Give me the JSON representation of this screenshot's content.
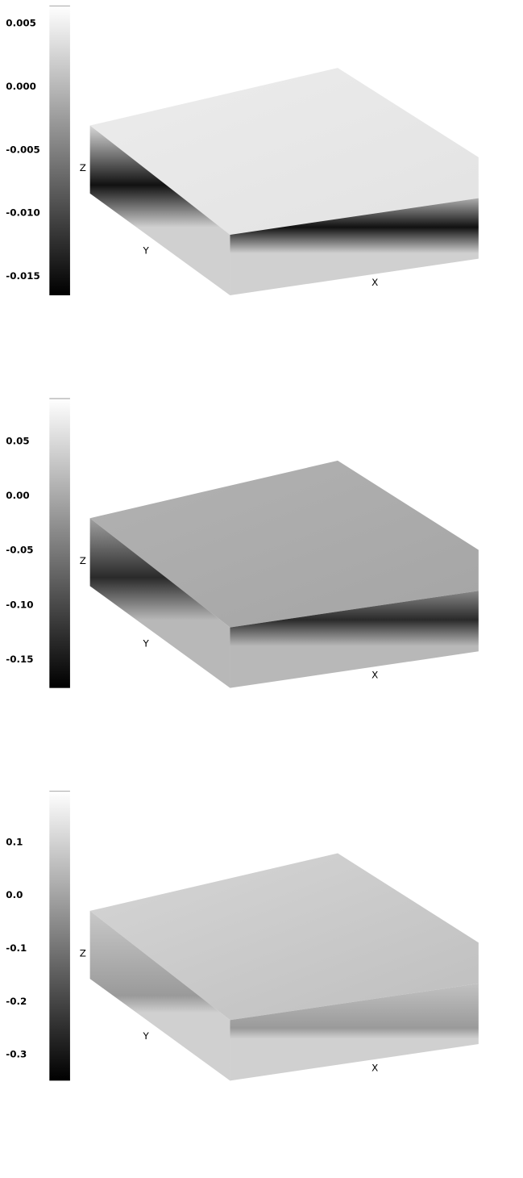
{
  "chart_data": [
    {
      "type": "volume",
      "xlabel": "X",
      "ylabel": "Y",
      "zlabel": "Z",
      "clim": [
        -0.0165,
        0.0064
      ],
      "cticks": [
        0.005,
        {
          "value": 0,
          "label": "0.000"
        },
        -0.005,
        {
          "value": -0.01,
          "label": "-0.010"
        },
        -0.015
      ]
    },
    {
      "type": "volume",
      "xlabel": "X",
      "ylabel": "Y",
      "zlabel": "Z",
      "clim": [
        -0.176,
        0.089
      ],
      "cticks": [
        0.05,
        {
          "value": 0,
          "label": "0.00"
        },
        -0.05,
        {
          "value": -0.1,
          "label": "-0.10"
        },
        -0.15
      ]
    },
    {
      "type": "volume",
      "xlabel": "X",
      "ylabel": "Y",
      "zlabel": "Z",
      "clim": [
        -0.349,
        0.196
      ],
      "cticks": [
        0.1,
        {
          "value": 0,
          "label": "0.0"
        },
        -0.1,
        -0.2,
        -0.3
      ]
    }
  ]
}
